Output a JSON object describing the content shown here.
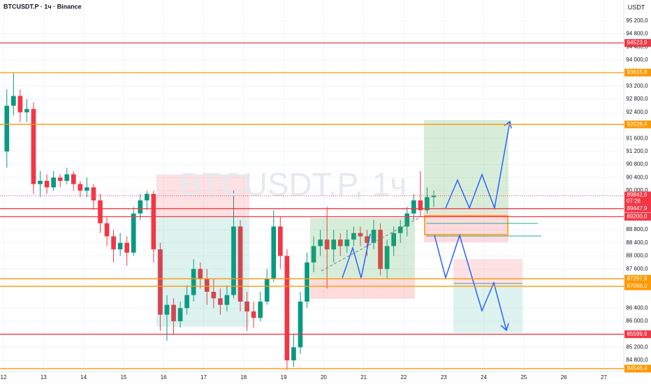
{
  "header": "BTCUSDT.P · 1ч · Binance",
  "watermark": "BTCUSDT.P, 1ч",
  "chart_data": {
    "type": "candlestick",
    "y_axis_label": "USDT",
    "up_color": "#089981",
    "down_color": "#f23645",
    "x_labels": [
      "12",
      "13",
      "14",
      "15",
      "16",
      "17",
      "18",
      "19",
      "20",
      "21",
      "22",
      "23",
      "24",
      "25",
      "26",
      "27"
    ],
    "open": [
      91200,
      92600,
      92900,
      92400,
      92500,
      90200,
      90300,
      90100,
      90400,
      90300,
      90500,
      90200,
      90000,
      90100,
      89700,
      89000,
      88600,
      88200,
      88400,
      88100,
      89300,
      89700,
      89900,
      88200,
      86200,
      86500,
      86000,
      86400,
      86800,
      87600,
      87300,
      86900,
      86700,
      86500,
      86800,
      88900,
      86600,
      86300,
      86100,
      86600,
      87300,
      88900,
      88000,
      84800,
      85200,
      86600,
      87800,
      88300,
      88500,
      88200,
      88500,
      88300,
      88500,
      88700,
      88600,
      88400,
      88800,
      87600,
      88300,
      88700,
      88900,
      89300,
      89700,
      89400,
      89800
    ],
    "high": [
      93100,
      93600,
      93100,
      92800,
      92700,
      90600,
      90500,
      90600,
      90500,
      90700,
      90600,
      90300,
      90400,
      90200,
      89900,
      89200,
      88800,
      88700,
      88600,
      89500,
      89900,
      90000,
      90000,
      88400,
      86800,
      86700,
      86600,
      87100,
      87900,
      87800,
      87600,
      87300,
      87000,
      87100,
      90000,
      89100,
      86900,
      86600,
      86900,
      87600,
      89400,
      89200,
      88200,
      85600,
      86900,
      88100,
      88600,
      88800,
      89500,
      88800,
      88700,
      88800,
      88900,
      88900,
      88800,
      89100,
      89000,
      88500,
      88900,
      89100,
      89500,
      89900,
      90600,
      90100,
      90000
    ],
    "low": [
      90700,
      92300,
      92100,
      92100,
      89900,
      89800,
      89900,
      90000,
      90100,
      90200,
      90000,
      89800,
      89800,
      89400,
      88700,
      88300,
      87800,
      88000,
      87700,
      88000,
      89100,
      89400,
      87800,
      85700,
      85400,
      85600,
      85800,
      86200,
      86600,
      87000,
      86500,
      86400,
      86200,
      86300,
      86700,
      86300,
      85700,
      85800,
      86000,
      86500,
      87200,
      87600,
      84500,
      84600,
      85000,
      86400,
      87500,
      88000,
      87000,
      87800,
      88000,
      88100,
      88300,
      88300,
      88000,
      88200,
      87400,
      87300,
      88000,
      88400,
      88600,
      89100,
      89200,
      89300,
      89500
    ],
    "close": [
      92600,
      92900,
      92400,
      92500,
      90200,
      90300,
      90100,
      90400,
      90300,
      90500,
      90200,
      90000,
      90100,
      89700,
      89000,
      88600,
      88200,
      88400,
      88100,
      89300,
      89700,
      89900,
      88200,
      86200,
      86500,
      86000,
      86400,
      86800,
      87600,
      87300,
      86900,
      86700,
      86500,
      86800,
      88900,
      86600,
      86300,
      86100,
      86600,
      87300,
      88900,
      88000,
      84800,
      85200,
      86600,
      87800,
      88300,
      88500,
      88200,
      88500,
      88300,
      88500,
      88700,
      88600,
      88400,
      88800,
      87600,
      88300,
      88700,
      88900,
      89300,
      89700,
      89400,
      89800,
      89842.6
    ],
    "ylim": [
      84460,
      95840
    ],
    "yticks": [
      {
        "value": 95200,
        "label": "95 200,0"
      },
      {
        "value": 94800,
        "label": "94 800,0"
      },
      {
        "value": 94400,
        "label": "94 400,0"
      },
      {
        "value": 94000,
        "label": "94 000,0"
      },
      {
        "value": 93200,
        "label": "93 200,0"
      },
      {
        "value": 92800,
        "label": "92 800,0"
      },
      {
        "value": 92400,
        "label": "92 400,0"
      },
      {
        "value": 91600,
        "label": "91 600,0"
      },
      {
        "value": 91200,
        "label": "91 200,0"
      },
      {
        "value": 90800,
        "label": "90 800,0"
      },
      {
        "value": 90400,
        "label": "90 400,0"
      },
      {
        "value": 90000,
        "label": "90 000,0"
      },
      {
        "value": 88800,
        "label": "88 800,0"
      },
      {
        "value": 88400,
        "label": "88 400,0"
      },
      {
        "value": 88000,
        "label": "88 000,0"
      },
      {
        "value": 87600,
        "label": "87 600,0"
      },
      {
        "value": 86400,
        "label": "86 400,0"
      },
      {
        "value": 86000,
        "label": "86 000,0"
      },
      {
        "value": 85200,
        "label": "85 200,0"
      },
      {
        "value": 84800,
        "label": "84 800,0"
      }
    ],
    "levels": [
      {
        "value": 94523.9,
        "label": "94523,9",
        "color": "#f23645"
      },
      {
        "value": 93615.8,
        "label": "93615,8",
        "color": "#ff9800"
      },
      {
        "value": 92028.4,
        "label": "92028,4",
        "color": "#ff9800"
      },
      {
        "value": 89447.9,
        "label": "89447,9",
        "color": "#f23645"
      },
      {
        "value": 89200,
        "label": "89200,0",
        "color": "#f23645"
      },
      {
        "value": 87297.9,
        "label": "87297,9",
        "color": "#ff9800"
      },
      {
        "value": 87068,
        "label": "87068,0",
        "color": "#ff9800"
      },
      {
        "value": 85599.9,
        "label": "85599,9",
        "color": "#f23645"
      },
      {
        "value": 84546.4,
        "label": "84546,4",
        "color": "#ff9800"
      }
    ],
    "last_price": {
      "value": 89842.6,
      "label": "89842,6",
      "countdown": "07:26",
      "color": "#f23645"
    }
  }
}
